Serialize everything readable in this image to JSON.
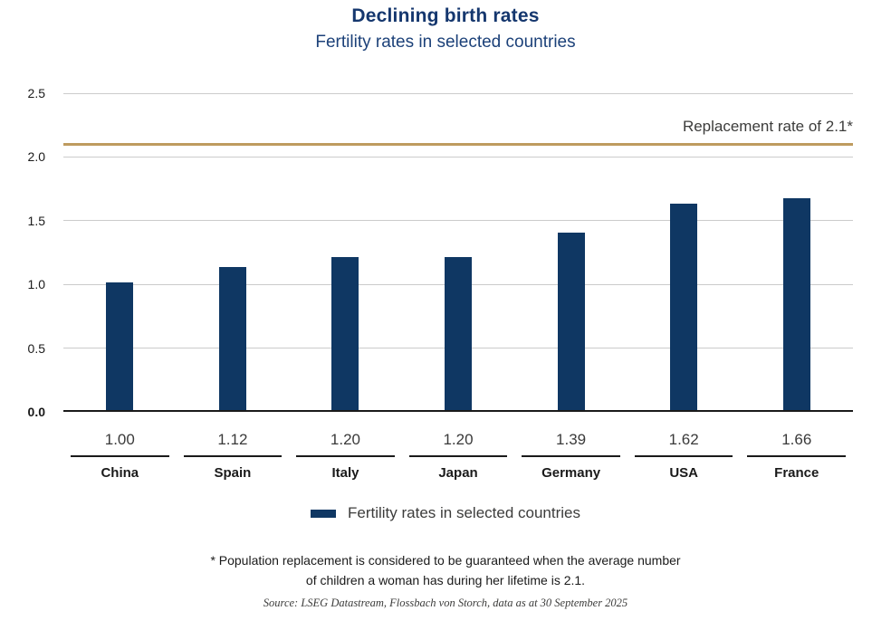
{
  "chart_data": {
    "type": "bar",
    "title": "Declining birth rates",
    "subtitle": "Fertility rates in selected countries",
    "categories": [
      "China",
      "Spain",
      "Italy",
      "Japan",
      "Germany",
      "USA",
      "France"
    ],
    "values": [
      1.0,
      1.12,
      1.2,
      1.2,
      1.39,
      1.62,
      1.66
    ],
    "value_labels": [
      "1.00",
      "1.12",
      "1.20",
      "1.20",
      "1.39",
      "1.62",
      "1.66"
    ],
    "ylim": [
      0,
      2.5
    ],
    "yticks": [
      0.0,
      0.5,
      1.0,
      1.5,
      2.0,
      2.5
    ],
    "ytick_labels": [
      "0.0",
      "0.5",
      "1.0",
      "1.5",
      "2.0",
      "2.5"
    ],
    "grid": true,
    "legend_position": "bottom",
    "reference_line": {
      "value": 2.1,
      "label": "Replacement rate of 2.1*",
      "color": "#BE9B5F"
    },
    "legend": {
      "label": "Fertility rates in selected countries",
      "swatch_color": "#0F3763"
    },
    "footnote_line1": "* Population replacement is considered to be guaranteed when the average number",
    "footnote_line2": "of children a woman has during her lifetime is 2.1.",
    "source": "Source: LSEG Datastream, Flossbach von Storch, data as at 30 September 2025"
  },
  "colors": {
    "bar": "#0F3763",
    "title": "#15376E",
    "subtitle": "#1C4179",
    "reference": "#BE9B5F",
    "gridline": "#CBCBCB",
    "axis": "#1A1A1A",
    "text_gray": "#3C3C3B"
  }
}
